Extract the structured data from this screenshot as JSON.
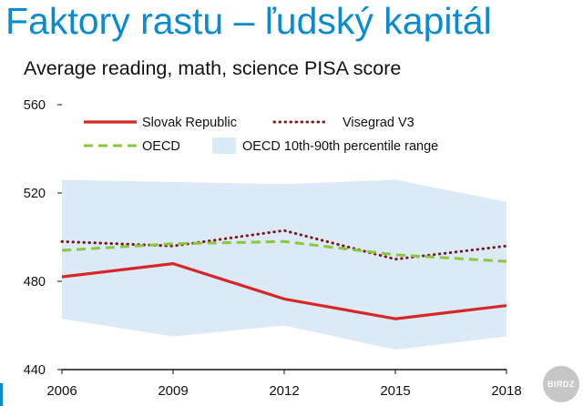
{
  "slide": {
    "title": "Faktory rastu – ľudský kapitál",
    "title_color": "#0a8bd0",
    "watermark": "BIRDZ"
  },
  "chart_data": {
    "type": "line",
    "title": "Average reading, math, science PISA score",
    "xlabel": "",
    "ylabel": "",
    "x": [
      2006,
      2009,
      2012,
      2015,
      2018
    ],
    "x_tick_labels": [
      "2006",
      "2009",
      "2012",
      "2015",
      "2018"
    ],
    "ylim": [
      440,
      560
    ],
    "y_ticks": [
      440,
      480,
      520,
      560
    ],
    "grid": false,
    "legend_position": "top",
    "band": {
      "name": "OECD 10th-90th percentile range",
      "color": "#dce9f7",
      "lower": [
        463,
        455,
        460,
        449,
        455
      ],
      "upper": [
        526,
        525,
        524,
        526,
        516
      ]
    },
    "series": [
      {
        "name": "Slovak Republic",
        "values": [
          482,
          488,
          472,
          463,
          469
        ],
        "color": "#d62728",
        "style": "solid"
      },
      {
        "name": "Visegrad V3",
        "values": [
          498,
          496,
          503,
          490,
          496
        ],
        "color": "#7a1a1a",
        "style": "dotted"
      },
      {
        "name": "OECD",
        "values": [
          494,
          497,
          498,
          492,
          489
        ],
        "color": "#8cc63f",
        "style": "dashed"
      }
    ]
  }
}
